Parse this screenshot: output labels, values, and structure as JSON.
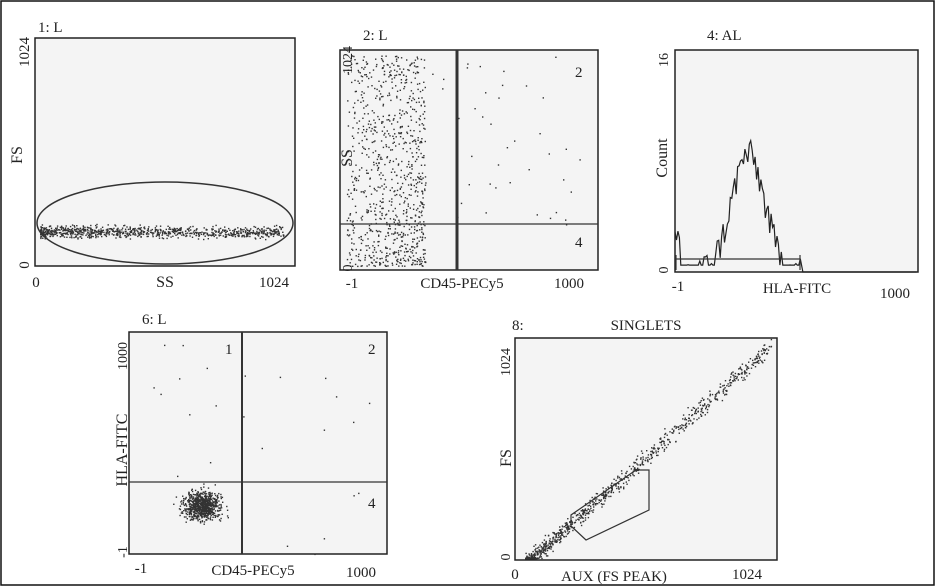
{
  "chart_data": [
    {
      "type": "scatter",
      "title": "1: L",
      "xlabel": "SS",
      "ylabel": "FS",
      "x_ticks": [
        "0",
        "1024"
      ],
      "y_ticks": [
        "1024",
        "0"
      ],
      "xlim": [
        0,
        1024
      ],
      "ylim": [
        0,
        1024
      ],
      "gate": "ellipse",
      "population": {
        "x_range": [
          20,
          980
        ],
        "y_center": 155,
        "y_spread": 45,
        "count": 900
      }
    },
    {
      "type": "scatter",
      "title": "2: L",
      "xlabel": "CD45-PECy5",
      "ylabel": "SS",
      "x_ticks": [
        "-1",
        "1000"
      ],
      "y_ticks": [
        "1024",
        "0"
      ],
      "xlim": [
        -1,
        1000
      ],
      "ylim": [
        0,
        1024
      ],
      "quadrant_labels": [
        "2",
        "4"
      ],
      "quadrant_split": {
        "x": 335,
        "y": 175
      },
      "population": {
        "x_range": [
          20,
          330
        ],
        "y_range": [
          20,
          1000
        ],
        "count": 900
      }
    },
    {
      "type": "line",
      "title": "4: AL",
      "xlabel": "HLA-FITC",
      "ylabel": "Count",
      "x_ticks": [
        "-1",
        "1000"
      ],
      "y_ticks": [
        "16",
        "0"
      ],
      "xlim": [
        -1,
        1000
      ],
      "ylim": [
        0,
        16
      ],
      "peak": {
        "x": 300,
        "y": 8.5
      }
    },
    {
      "type": "scatter",
      "title": "6: L",
      "xlabel": "CD45-PECy5",
      "ylabel": "HLA-FITC",
      "x_ticks": [
        "-1",
        "1000"
      ],
      "y_ticks": [
        "1000",
        "-1"
      ],
      "xlim": [
        -1,
        1000
      ],
      "ylim": [
        -1,
        1000
      ],
      "quadrant_labels": [
        "1",
        "2",
        "4"
      ],
      "quadrant_split": {
        "x": 400,
        "y": 300
      },
      "population": {
        "x_center": 280,
        "y_center": 220,
        "count": 800
      }
    },
    {
      "type": "scatter",
      "title": "8:",
      "subtitle": "SINGLETS",
      "xlabel": "AUX (FS PEAK)",
      "ylabel": "FS",
      "x_ticks": [
        "0",
        "1024"
      ],
      "y_ticks": [
        "1024",
        "0"
      ],
      "xlim": [
        0,
        1024
      ],
      "ylim": [
        0,
        1024
      ],
      "population": {
        "x_range": [
          40,
          1000
        ],
        "count": 900
      }
    }
  ]
}
